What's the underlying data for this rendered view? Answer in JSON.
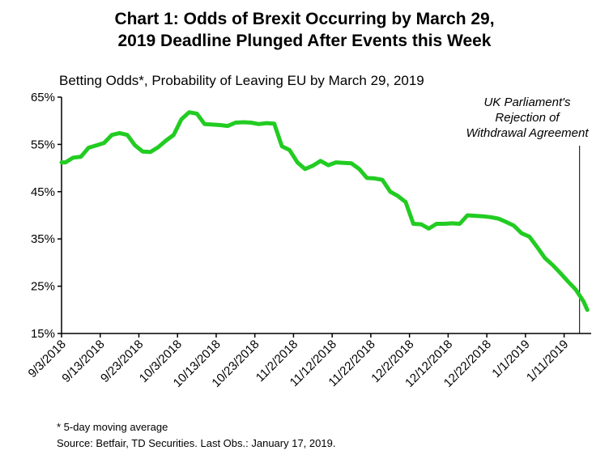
{
  "title": "Chart 1: Odds of Brexit Occurring by March 29, 2019 Deadline Plunged After Events this Week",
  "title_line1": "Chart 1: Odds of Brexit Occurring by March 29,",
  "title_line2": "2019 Deadline Plunged After Events this Week",
  "annotation_line1": "UK Parliament's",
  "annotation_line2": "Rejection of",
  "annotation_line3": "Withdrawal Agreement",
  "footnote": "* 5-day moving average",
  "source": "Source: Betfair, TD Securities. Last Obs.: January 17, 2019.",
  "colors": {
    "series": "#22cc22",
    "axis": "#000000"
  },
  "chart_data": {
    "type": "line",
    "title": "Betting Odds*, Probability of Leaving EU by March 29, 2019",
    "xlabel": "",
    "ylabel": "",
    "ylim": [
      15,
      65
    ],
    "y_ticks": [
      "15%",
      "25%",
      "35%",
      "45%",
      "55%",
      "65%"
    ],
    "y_tick_values": [
      15,
      25,
      35,
      45,
      55,
      65
    ],
    "x_tick_labels": [
      "9/3/2018",
      "9/13/2018",
      "9/23/2018",
      "10/3/2018",
      "10/13/2018",
      "10/23/2018",
      "11/2/2018",
      "11/12/2018",
      "11/22/2018",
      "12/2/2018",
      "12/12/2018",
      "12/22/2018",
      "1/1/2019",
      "1/11/2019"
    ],
    "x_tick_days": [
      0,
      10,
      20,
      30,
      40,
      50,
      60,
      70,
      80,
      90,
      100,
      110,
      120,
      130
    ],
    "x_range_days": [
      0,
      137
    ],
    "event_marker_day": 134,
    "series": [
      {
        "name": "Probability of Leaving EU",
        "x": [
          0,
          1,
          3,
          5,
          7,
          9,
          11,
          13,
          15,
          17,
          19,
          21,
          23,
          25,
          27,
          29,
          31,
          33,
          35,
          37,
          39,
          41,
          43,
          45,
          47,
          49,
          51,
          53,
          55,
          57,
          59,
          61,
          63,
          65,
          67,
          69,
          71,
          73,
          75,
          77,
          79,
          81,
          83,
          85,
          87,
          89,
          91,
          93,
          95,
          97,
          99,
          101,
          103,
          105,
          107,
          109,
          111,
          113,
          115,
          117,
          119,
          121,
          123,
          125,
          127,
          129,
          131,
          133,
          135,
          136
        ],
        "values": [
          51.2,
          51.2,
          52.2,
          52.4,
          54.3,
          54.8,
          55.3,
          57.0,
          57.4,
          57.0,
          54.8,
          53.5,
          53.4,
          54.4,
          55.8,
          57.0,
          60.3,
          61.8,
          61.5,
          59.3,
          59.2,
          59.1,
          58.9,
          59.6,
          59.7,
          59.6,
          59.3,
          59.5,
          59.4,
          54.6,
          53.8,
          51.2,
          49.8,
          50.5,
          51.5,
          50.6,
          51.2,
          51.1,
          51.0,
          49.8,
          47.9,
          47.8,
          47.5,
          45.0,
          44.1,
          42.8,
          38.2,
          38.1,
          37.2,
          38.2,
          38.2,
          38.3,
          38.2,
          40.0,
          39.9,
          39.8,
          39.6,
          39.3,
          38.6,
          37.8,
          36.2,
          35.5,
          33.3,
          31.0,
          29.5,
          27.8,
          26.0,
          24.3,
          21.8,
          20.0
        ]
      }
    ]
  }
}
